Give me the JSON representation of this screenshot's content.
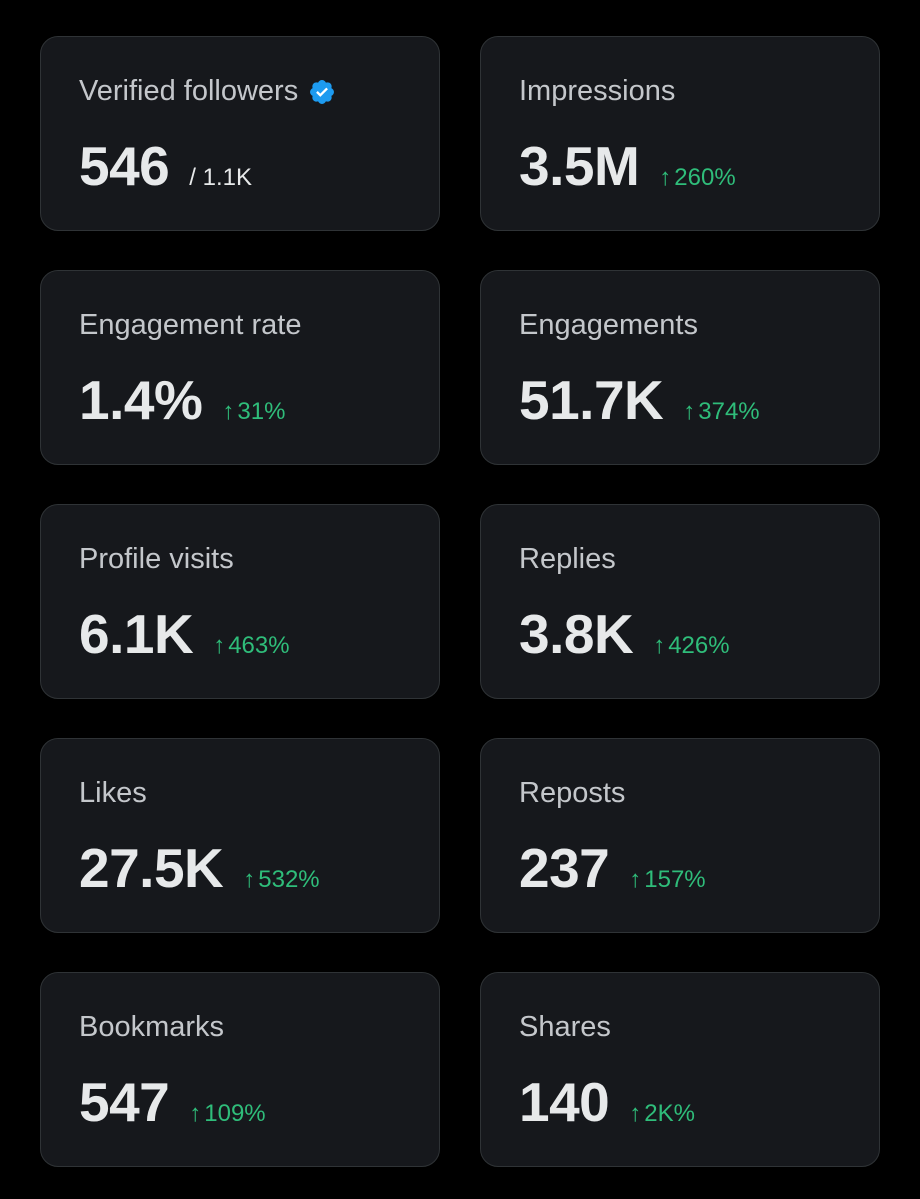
{
  "colors": {
    "background": "#000000",
    "card": "#16181c",
    "card_border": "#2f3336",
    "label": "#c4c7cb",
    "value": "#e7e9ea",
    "positive": "#2fbd7a",
    "verified": "#1d9bf0"
  },
  "cards": [
    {
      "label": "Verified followers",
      "value": "546",
      "total": "/ 1.1K",
      "icon": "verified-badge-icon"
    },
    {
      "label": "Impressions",
      "value": "3.5M",
      "change": "260%",
      "arrow": "↑"
    },
    {
      "label": "Engagement rate",
      "value": "1.4%",
      "change": "31%",
      "arrow": "↑"
    },
    {
      "label": "Engagements",
      "value": "51.7K",
      "change": "374%",
      "arrow": "↑"
    },
    {
      "label": "Profile visits",
      "value": "6.1K",
      "change": "463%",
      "arrow": "↑"
    },
    {
      "label": "Replies",
      "value": "3.8K",
      "change": "426%",
      "arrow": "↑"
    },
    {
      "label": "Likes",
      "value": "27.5K",
      "change": "532%",
      "arrow": "↑"
    },
    {
      "label": "Reposts",
      "value": "237",
      "change": "157%",
      "arrow": "↑"
    },
    {
      "label": "Bookmarks",
      "value": "547",
      "change": "109%",
      "arrow": "↑"
    },
    {
      "label": "Shares",
      "value": "140",
      "change": "2K%",
      "arrow": "↑"
    }
  ]
}
